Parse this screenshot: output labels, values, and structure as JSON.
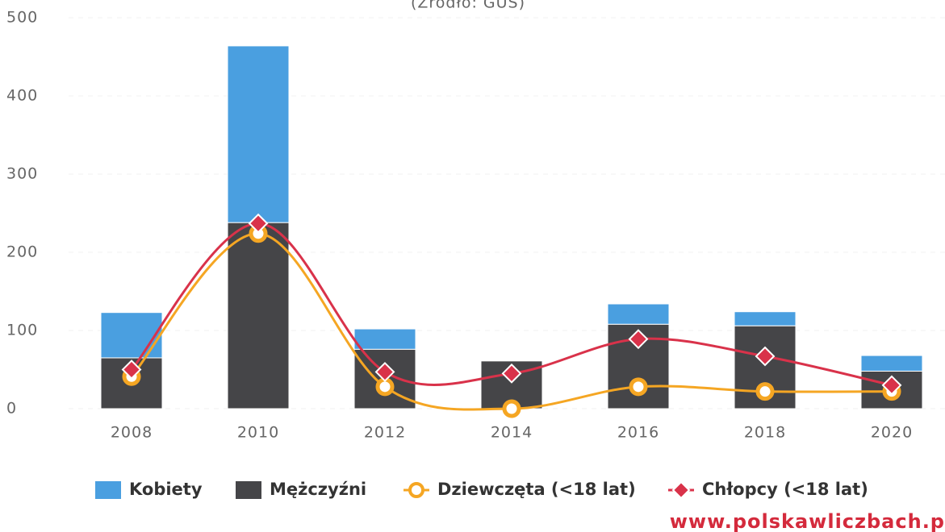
{
  "chart_data": {
    "type": "bar_line",
    "subtitle": "(Źródło: GUS)",
    "watermark": "www.polskawliczbach.p",
    "categories": [
      "2008",
      "2010",
      "2012",
      "2014",
      "2016",
      "2018",
      "2020"
    ],
    "ylim": [
      0,
      500
    ],
    "yticks": [
      0,
      100,
      200,
      300,
      400,
      500
    ],
    "grid": true,
    "series": [
      {
        "name": "Kobiety",
        "type": "bar",
        "stack": "bottom-top",
        "color": "#4a9fe0",
        "values": [
          58,
          226,
          26,
          0,
          26,
          18,
          20
        ]
      },
      {
        "name": "Mężczyźni",
        "type": "bar",
        "color": "#454548",
        "values": [
          65,
          238,
          76,
          61,
          108,
          106,
          48
        ]
      },
      {
        "name": "Dziewczęta (<18 lat)",
        "type": "line",
        "color": "#f5a623",
        "values": [
          41,
          224,
          28,
          0,
          28,
          22,
          22
        ]
      },
      {
        "name": "Chłopcy (<18 lat)",
        "type": "line",
        "color": "#d9324a",
        "values": [
          50,
          237,
          47,
          45,
          89,
          67,
          30
        ]
      }
    ]
  }
}
